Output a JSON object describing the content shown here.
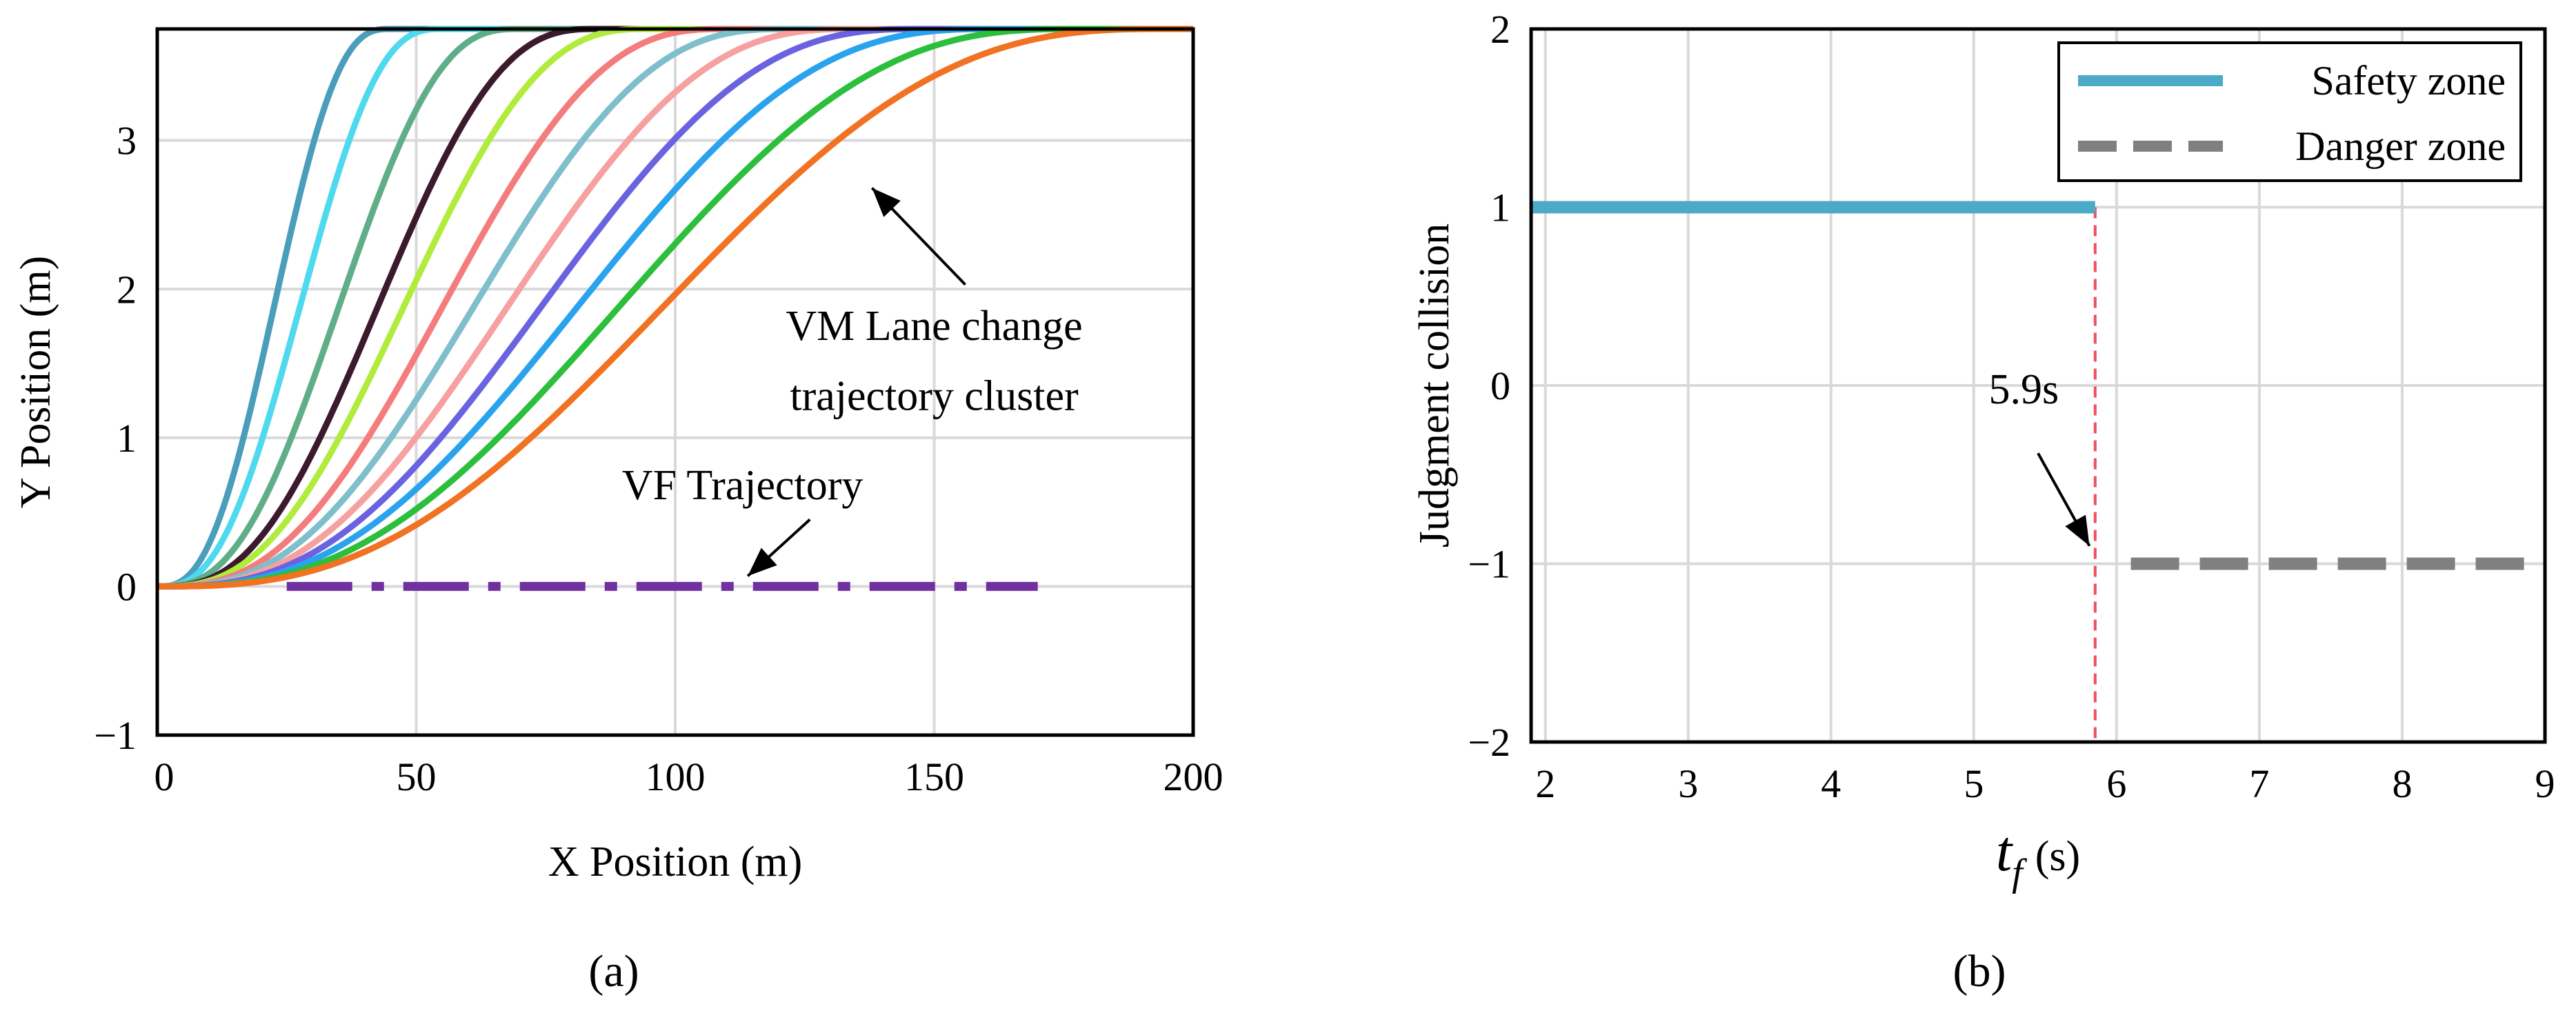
{
  "panels": {
    "a": "(a)",
    "b": "(b)"
  },
  "chart_data": [
    {
      "type": "line",
      "panel": "a",
      "xlabel": "X Position (m)",
      "ylabel": "Y Position (m)",
      "xlim": [
        0,
        200
      ],
      "ylim": [
        -1,
        3.75
      ],
      "xticks": [
        0,
        50,
        100,
        150,
        200
      ],
      "yticks": [
        -1,
        0,
        1,
        2,
        3
      ],
      "grid": true,
      "lane_offset": 3.75,
      "series": [
        {
          "x_end": 45,
          "color": "#4a9dbb"
        },
        {
          "x_end": 55,
          "color": "#4fd9ee"
        },
        {
          "x_end": 70,
          "color": "#5fae88"
        },
        {
          "x_end": 85,
          "color": "#3a1a2c"
        },
        {
          "x_end": 95,
          "color": "#b0ec3c"
        },
        {
          "x_end": 110,
          "color": "#f47c7c"
        },
        {
          "x_end": 122,
          "color": "#7fbecb"
        },
        {
          "x_end": 135,
          "color": "#f6a0a0"
        },
        {
          "x_end": 148,
          "color": "#6a62e0"
        },
        {
          "x_end": 162,
          "color": "#2aa3ee"
        },
        {
          "x_end": 178,
          "color": "#2bbf3c"
        },
        {
          "x_end": 195,
          "color": "#f07222"
        }
      ],
      "vf_trajectory": {
        "x": [
          25,
          170
        ],
        "y": 0,
        "color": "#7030a0"
      },
      "annotations": [
        {
          "text": "VM Lane change",
          "x": 150,
          "y": 1.75
        },
        {
          "text": "trajectory cluster",
          "x": 150,
          "y": 1.28
        },
        {
          "text": "VF Trajectory",
          "x": 113,
          "y": 0.68
        }
      ]
    },
    {
      "type": "line",
      "panel": "b",
      "xlabel_main": "t",
      "xlabel_sub": "f",
      "xlabel_unit": "(s)",
      "ylabel": "Judgment collision",
      "xlim": [
        1.9,
        9
      ],
      "ylim": [
        -2,
        2
      ],
      "xticks": [
        2,
        3,
        4,
        5,
        6,
        7,
        8,
        9
      ],
      "yticks": [
        -2,
        -1,
        0,
        1,
        2
      ],
      "grid": true,
      "legend_position": "top-right",
      "series": [
        {
          "name": "Safety zone",
          "x": [
            1.9,
            5.85
          ],
          "y": [
            1,
            1
          ],
          "color": "#4baac7",
          "style": "solid"
        },
        {
          "name": "Danger zone",
          "x": [
            6.1,
            9
          ],
          "y": [
            -1,
            -1
          ],
          "color": "#808080",
          "style": "dashed"
        }
      ],
      "threshold": {
        "x": 5.85,
        "label": "5.9s",
        "color": "#f0505a"
      }
    }
  ]
}
